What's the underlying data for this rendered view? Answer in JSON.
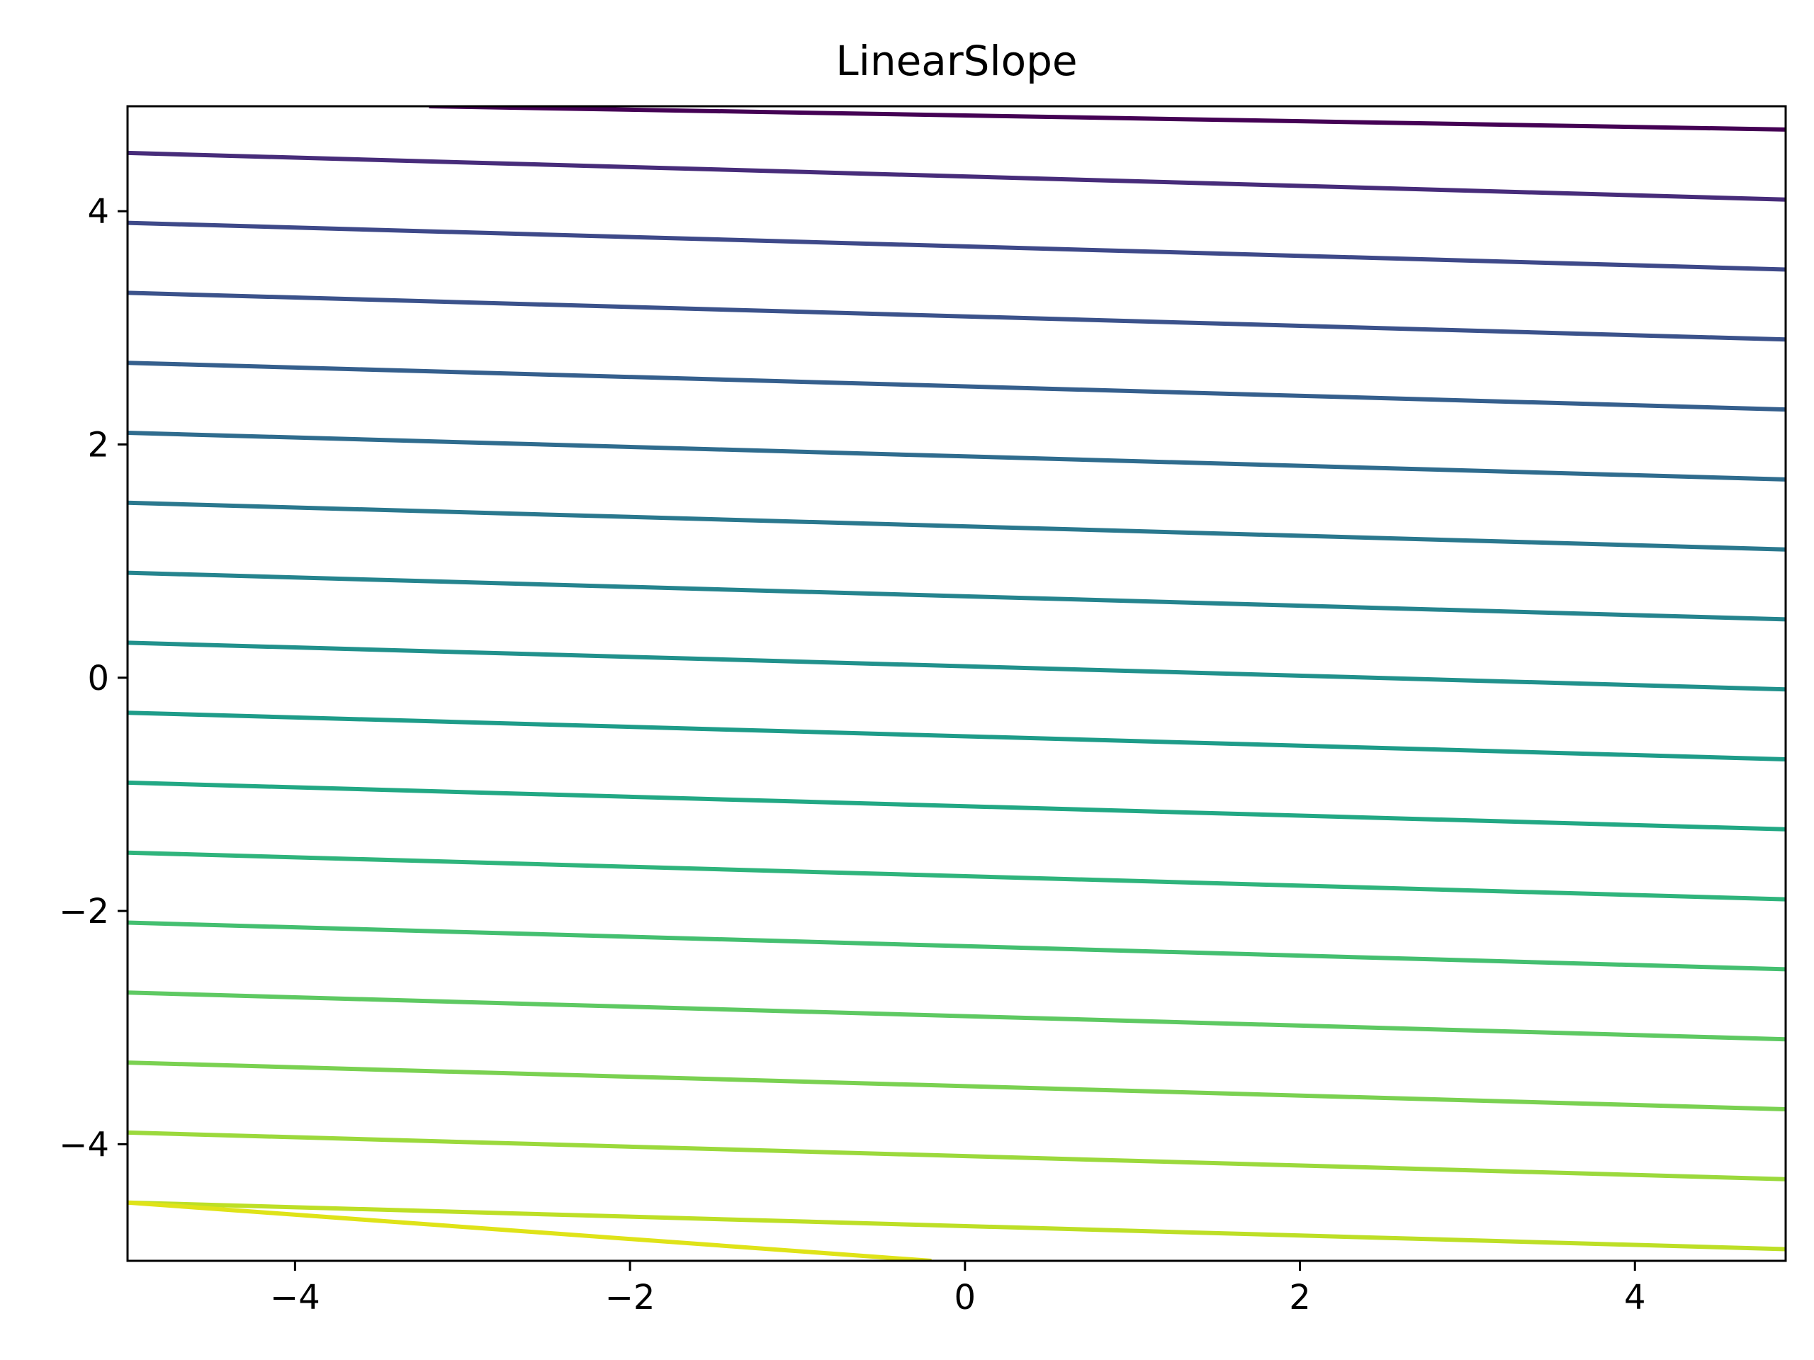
{
  "chart_data": {
    "type": "line",
    "title": "LinearSlope",
    "xlabel": "",
    "ylabel": "",
    "xlim": [
      -5,
      4.9
    ],
    "ylim": [
      -5,
      4.9
    ],
    "grid": false,
    "x_ticks": [
      -4,
      -2,
      0,
      2,
      4
    ],
    "x_tick_labels": [
      "−4",
      "−2",
      "0",
      "2",
      "4"
    ],
    "y_ticks": [
      -4,
      -2,
      0,
      2,
      4
    ],
    "y_tick_labels": [
      "−4",
      "−2",
      "0",
      "2",
      "4"
    ],
    "colormap": "viridis",
    "series": [
      {
        "x": [
          -3.2,
          4.9
        ],
        "y": [
          4.9,
          4.7
        ],
        "color": "#440154"
      },
      {
        "x": [
          -5,
          4.9
        ],
        "y": [
          4.5,
          4.1
        ],
        "color": "#472c7a"
      },
      {
        "x": [
          -5,
          4.9
        ],
        "y": [
          3.9,
          3.5
        ],
        "color": "#3e4989"
      },
      {
        "x": [
          -5,
          4.9
        ],
        "y": [
          3.3,
          2.9
        ],
        "color": "#3b528b"
      },
      {
        "x": [
          -5,
          4.9
        ],
        "y": [
          2.7,
          2.3
        ],
        "color": "#355f8d"
      },
      {
        "x": [
          -5,
          4.9
        ],
        "y": [
          2.1,
          1.7
        ],
        "color": "#2f6c8e"
      },
      {
        "x": [
          -5,
          4.9
        ],
        "y": [
          1.5,
          1.1
        ],
        "color": "#2a788e"
      },
      {
        "x": [
          -5,
          4.9
        ],
        "y": [
          0.9,
          0.5
        ],
        "color": "#25848e"
      },
      {
        "x": [
          -5,
          4.9
        ],
        "y": [
          0.3,
          -0.1
        ],
        "color": "#21918c"
      },
      {
        "x": [
          -5,
          4.9
        ],
        "y": [
          -0.3,
          -0.7
        ],
        "color": "#1e9c89"
      },
      {
        "x": [
          -5,
          4.9
        ],
        "y": [
          -0.9,
          -1.3
        ],
        "color": "#22a884"
      },
      {
        "x": [
          -5,
          4.9
        ],
        "y": [
          -1.5,
          -1.9
        ],
        "color": "#2fb47c"
      },
      {
        "x": [
          -5,
          4.9
        ],
        "y": [
          -2.1,
          -2.5
        ],
        "color": "#44bf70"
      },
      {
        "x": [
          -5,
          4.9
        ],
        "y": [
          -2.7,
          -3.1
        ],
        "color": "#5ec962"
      },
      {
        "x": [
          -5,
          4.9
        ],
        "y": [
          -3.3,
          -3.7
        ],
        "color": "#7ad151"
      },
      {
        "x": [
          -5,
          4.9
        ],
        "y": [
          -3.9,
          -4.3
        ],
        "color": "#9bd93c"
      },
      {
        "x": [
          -5,
          4.9
        ],
        "y": [
          -4.5,
          -4.9
        ],
        "color": "#bddf26"
      },
      {
        "x": [
          -5,
          -0.2
        ],
        "y": [
          -4.5,
          -5
        ],
        "color": "#dfe318"
      }
    ]
  }
}
